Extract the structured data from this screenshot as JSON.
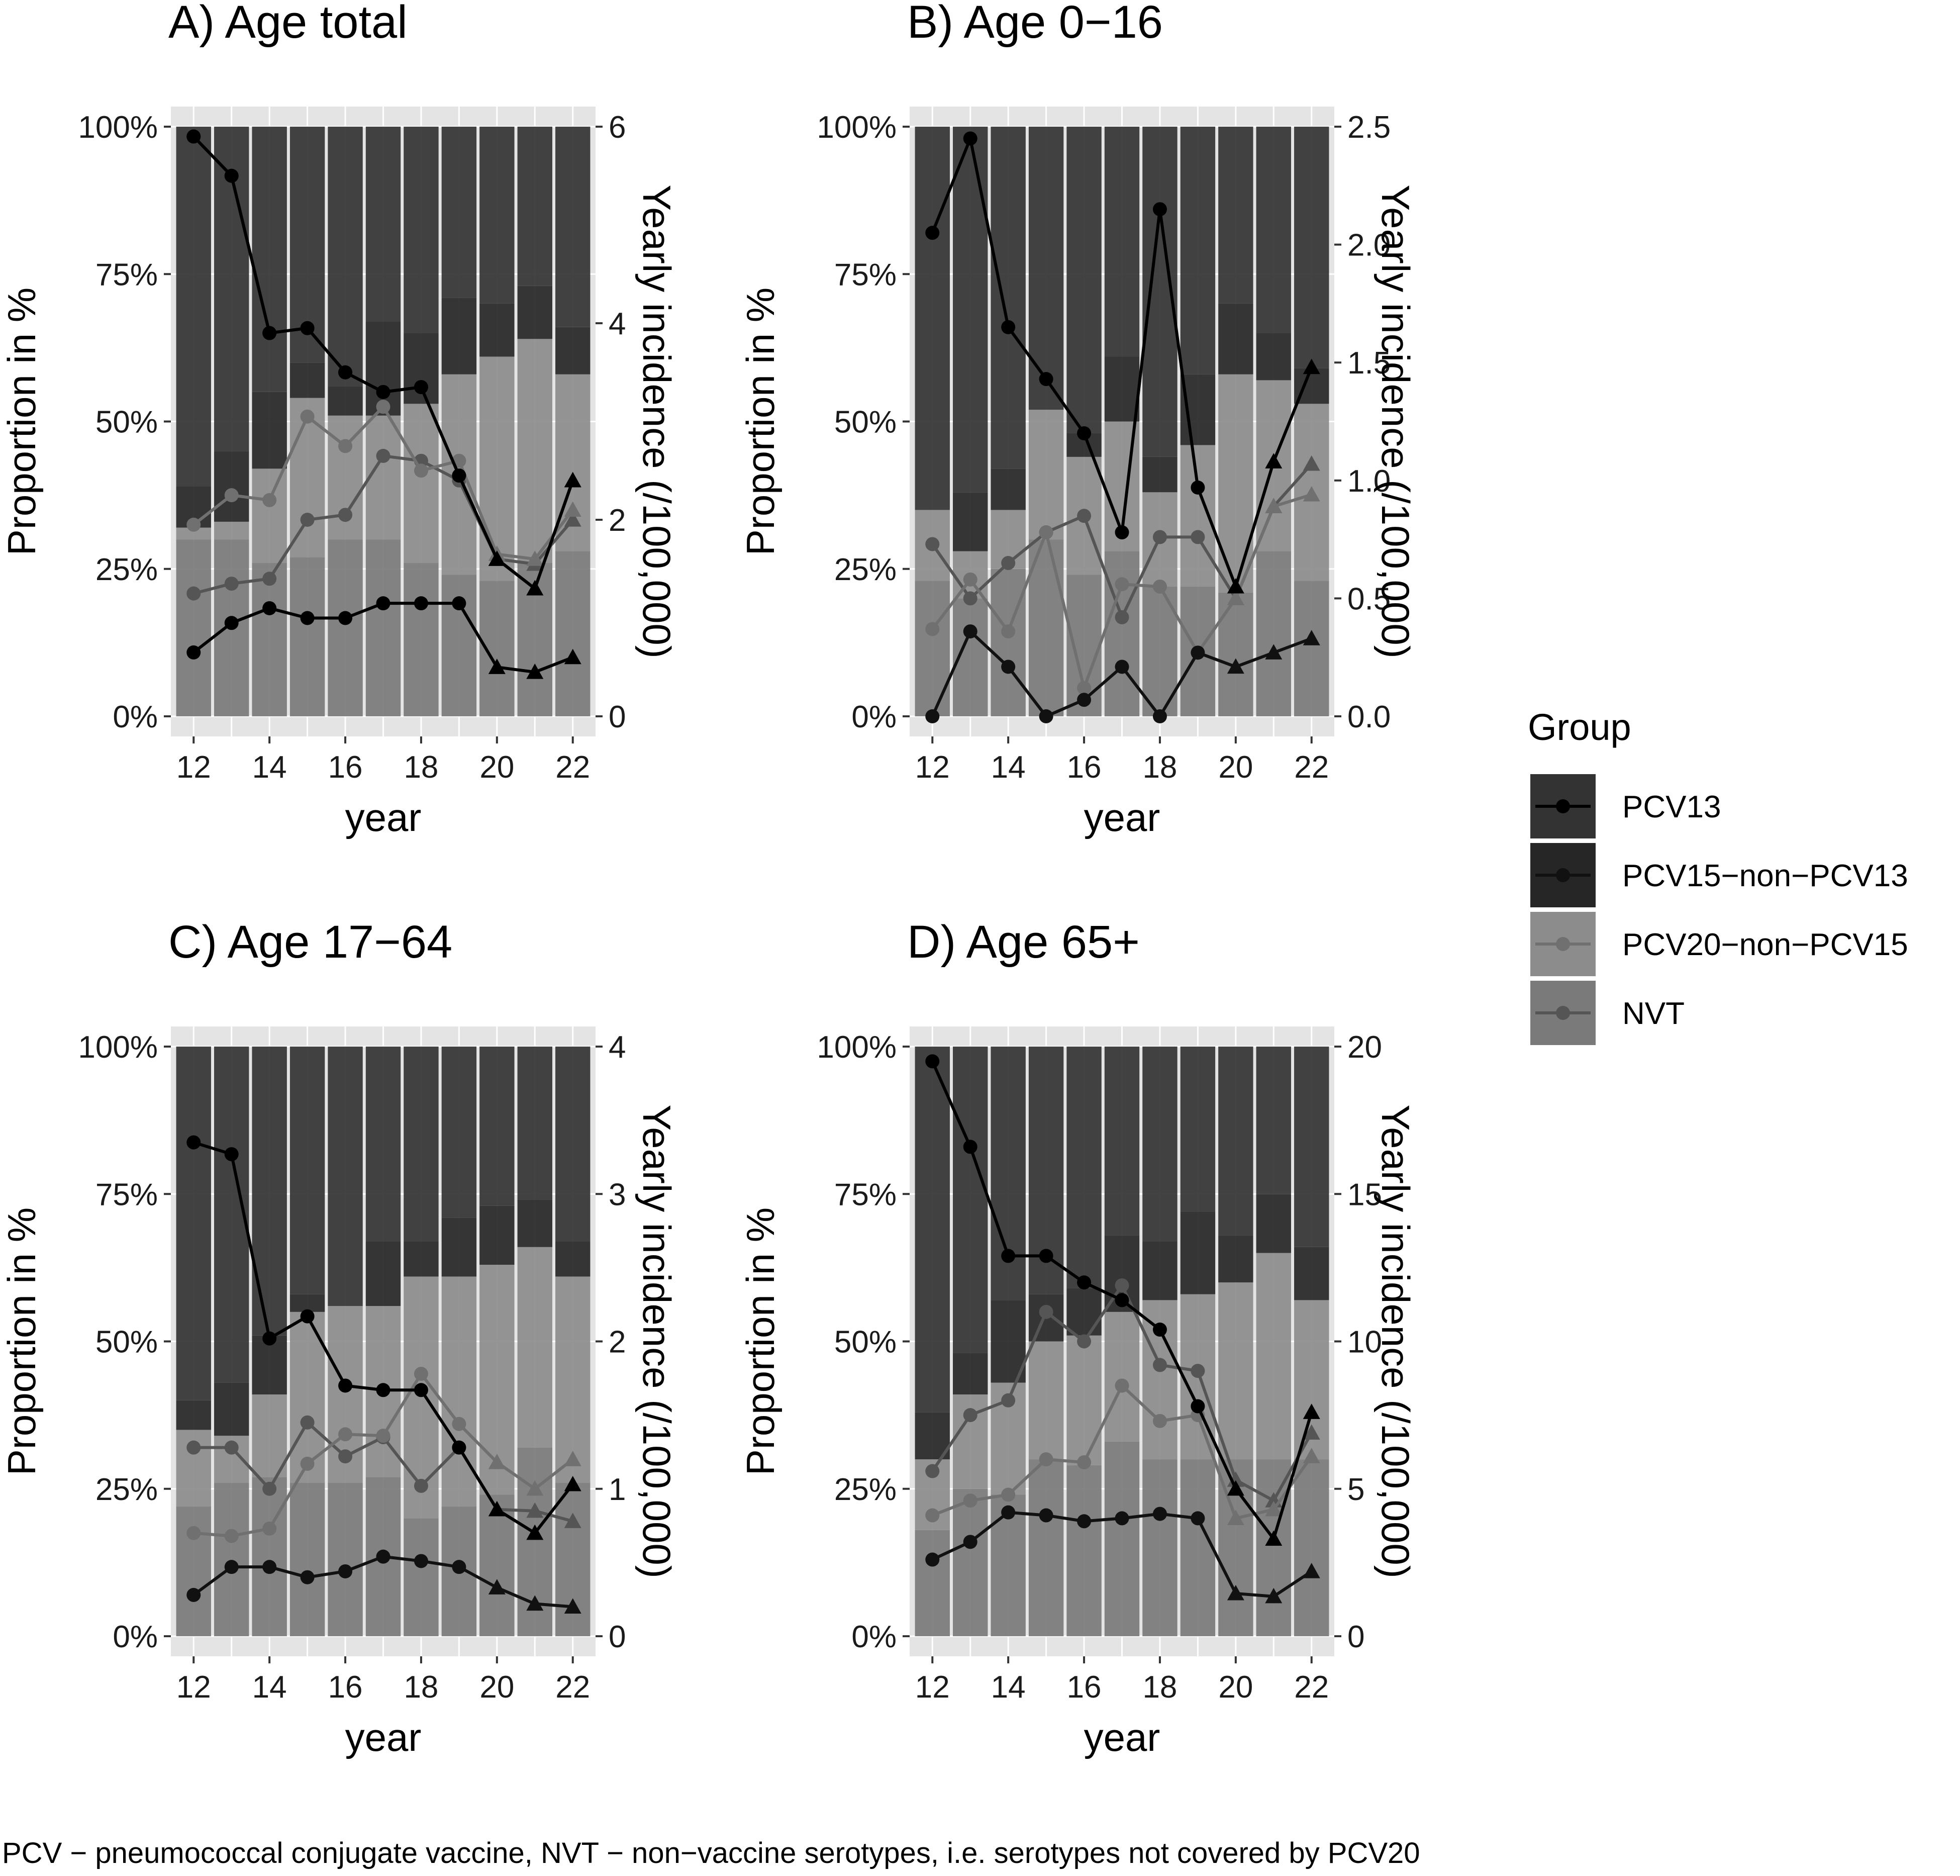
{
  "chart_data": {
    "type": "bar",
    "description_note": "",
    "groups": [
      "PCV13",
      "PCV15-non-PCV13",
      "PCV20-non-PCV15",
      "NVT"
    ],
    "colors": {
      "PCV13": {
        "bar": "#333333",
        "line": "#000000"
      },
      "PCV15-non-PCV13": {
        "bar": "#262626",
        "line": "#111111"
      },
      "PCV20-non-PCV15": {
        "bar": "#8c8c8c",
        "line": "#707070"
      },
      "NVT": {
        "bar": "#7a7a7a",
        "line": "#555555"
      }
    },
    "panel_background": "#e4e4e4",
    "legend": {
      "title": "Group",
      "items": [
        "PCV13",
        "PCV15−non−PCV13",
        "PCV20−non−PCV15",
        "NVT"
      ]
    },
    "caption": "PCV − pneumococcal conjugate vaccine, NVT − non−vaccine serotypes, i.e. serotypes not covered by PCV20",
    "panels": [
      {
        "title": "A) Age total",
        "xlabel": "year",
        "ylabel_left": "Proportion in %",
        "ylabel_right": "Yearly incidence (/100,000)",
        "years": [
          12,
          13,
          14,
          15,
          16,
          17,
          18,
          19,
          20,
          21,
          22
        ],
        "x_ticks": [
          "12",
          "14",
          "16",
          "18",
          "20",
          "22"
        ],
        "y_left_ticks": [
          "0%",
          "25%",
          "50%",
          "75%",
          "100%"
        ],
        "y_right_ticks": [
          "0",
          "2",
          "4",
          "6"
        ],
        "y_right_lim": [
          0,
          6
        ],
        "proportions": {
          "NVT": [
            30,
            30,
            26,
            27,
            30,
            30,
            26,
            24,
            23,
            26,
            28
          ],
          "PCV20-non-PCV15": [
            2,
            3,
            16,
            27,
            21,
            21,
            27,
            34,
            38,
            38,
            30
          ],
          "PCV15-non-PCV13": [
            7,
            12,
            13,
            6,
            5,
            16,
            12,
            13,
            9,
            9,
            8
          ],
          "PCV13": [
            61,
            55,
            45,
            40,
            44,
            33,
            35,
            29,
            30,
            27,
            34
          ]
        },
        "incidence": {
          "PCV13": [
            5.9,
            5.5,
            3.9,
            3.95,
            3.5,
            3.3,
            3.35,
            2.45,
            1.6,
            1.3,
            2.4
          ],
          "PCV15-non-PCV13": [
            5.9,
            5.5,
            3.9,
            3.95,
            3.5,
            3.3,
            3.35,
            2.45,
            1.6,
            1.3,
            2.4
          ],
          "PCV20-non-PCV15": [
            1.95,
            2.25,
            2.2,
            3.05,
            2.75,
            3.15,
            2.5,
            2.6,
            1.65,
            1.6,
            2.1
          ],
          "NVT": [
            1.25,
            1.35,
            1.4,
            2.0,
            2.05,
            2.65,
            2.6,
            2.4,
            1.6,
            1.55,
            2.0
          ],
          "PCV13_line_low": [
            0.65,
            0.95,
            1.1,
            1.0,
            1.0,
            1.15,
            1.15,
            1.15,
            0.5,
            0.45,
            0.6
          ]
        }
      },
      {
        "title": "B) Age 0−16",
        "xlabel": "year",
        "ylabel_left": "Proportion in %",
        "ylabel_right": "Yearly incidence (/100,000)",
        "years": [
          12,
          13,
          14,
          15,
          16,
          17,
          18,
          19,
          20,
          21,
          22
        ],
        "x_ticks": [
          "12",
          "14",
          "16",
          "18",
          "20",
          "22"
        ],
        "y_left_ticks": [
          "0%",
          "25%",
          "50%",
          "75%",
          "100%"
        ],
        "y_right_ticks": [
          "0.0",
          "0.5",
          "1.0",
          "1.5",
          "2.0",
          "2.5"
        ],
        "y_right_lim": [
          0,
          2.5
        ],
        "proportions": {
          "NVT": [
            23,
            20,
            25,
            30,
            24,
            28,
            22,
            22,
            21,
            28,
            23
          ],
          "PCV20-non-PCV15": [
            12,
            8,
            10,
            22,
            20,
            22,
            16,
            24,
            37,
            29,
            30
          ],
          "PCV15-non-PCV13": [
            0,
            10,
            7,
            0,
            4,
            11,
            6,
            12,
            12,
            8,
            6
          ],
          "PCV13": [
            65,
            62,
            58,
            48,
            52,
            39,
            56,
            42,
            30,
            35,
            41
          ]
        },
        "incidence": {
          "PCV13": [
            2.05,
            2.45,
            1.65,
            1.43,
            1.2,
            0.78,
            2.15,
            0.97,
            0.55,
            1.08,
            1.48
          ],
          "PCV15-non-PCV13": [
            0.0,
            0.36,
            0.21,
            0.0,
            0.07,
            0.21,
            0.0,
            0.27,
            0.21,
            0.27,
            0.33
          ],
          "PCV20-non-PCV15": [
            0.37,
            0.58,
            0.36,
            0.78,
            0.12,
            0.56,
            0.55,
            0.27,
            0.5,
            0.89,
            0.94
          ],
          "NVT": [
            0.73,
            0.5,
            0.65,
            0.78,
            0.85,
            0.42,
            0.76,
            0.76,
            0.5,
            0.89,
            1.07
          ]
        }
      },
      {
        "title": "C) Age 17−64",
        "xlabel": "year",
        "ylabel_left": "Proportion in %",
        "ylabel_right": "Yearly incidence (/100,000)",
        "years": [
          12,
          13,
          14,
          15,
          16,
          17,
          18,
          19,
          20,
          21,
          22
        ],
        "x_ticks": [
          "12",
          "14",
          "16",
          "18",
          "20",
          "22"
        ],
        "y_left_ticks": [
          "0%",
          "25%",
          "50%",
          "75%",
          "100%"
        ],
        "y_right_ticks": [
          "0",
          "1",
          "2",
          "3",
          "4"
        ],
        "y_right_lim": [
          0,
          4
        ],
        "proportions": {
          "NVT": [
            22,
            26,
            27,
            26,
            26,
            27,
            20,
            22,
            24,
            32,
            26
          ],
          "PCV20-non-PCV15": [
            13,
            8,
            14,
            29,
            30,
            29,
            41,
            39,
            39,
            34,
            35
          ],
          "PCV15-non-PCV13": [
            5,
            9,
            10,
            3,
            0,
            11,
            6,
            10,
            10,
            8,
            6
          ],
          "PCV13": [
            60,
            57,
            49,
            42,
            44,
            33,
            33,
            29,
            27,
            26,
            33
          ]
        },
        "incidence": {
          "PCV13": [
            3.35,
            3.27,
            2.02,
            2.17,
            1.7,
            1.67,
            1.67,
            1.28,
            0.86,
            0.7,
            1.03
          ],
          "PCV15-non-PCV13": [
            0.28,
            0.47,
            0.47,
            0.4,
            0.44,
            0.54,
            0.51,
            0.47,
            0.33,
            0.22,
            0.2
          ],
          "PCV20-non-PCV15": [
            0.7,
            0.68,
            0.73,
            1.17,
            1.37,
            1.36,
            1.78,
            1.44,
            1.18,
            1.0,
            1.2
          ],
          "NVT": [
            1.28,
            1.28,
            1.0,
            1.45,
            1.22,
            1.35,
            1.02,
            1.28,
            0.86,
            0.85,
            0.78
          ]
        }
      },
      {
        "title": "D) Age 65+",
        "xlabel": "year",
        "ylabel_left": "Proportion in %",
        "ylabel_right": "Yearly incidence (/100,000)",
        "years": [
          12,
          13,
          14,
          15,
          16,
          17,
          18,
          19,
          20,
          21,
          22
        ],
        "x_ticks": [
          "12",
          "14",
          "16",
          "18",
          "20",
          "22"
        ],
        "y_left_ticks": [
          "0%",
          "25%",
          "50%",
          "75%",
          "100%"
        ],
        "y_right_ticks": [
          "0",
          "5",
          "10",
          "15",
          "20"
        ],
        "y_right_lim": [
          0,
          20
        ],
        "proportions": {
          "NVT": [
            18,
            25,
            24,
            30,
            29,
            33,
            30,
            30,
            30,
            30,
            30
          ],
          "PCV20-non-PCV15": [
            12,
            16,
            19,
            20,
            22,
            22,
            27,
            28,
            30,
            35,
            27
          ],
          "PCV15-non-PCV13": [
            8,
            7,
            14,
            8,
            8,
            13,
            10,
            14,
            8,
            10,
            9
          ],
          "PCV13": [
            62,
            52,
            43,
            42,
            41,
            32,
            33,
            28,
            32,
            25,
            34
          ]
        },
        "incidence": {
          "PCV13": [
            19.5,
            16.6,
            12.9,
            12.9,
            12.0,
            11.4,
            10.4,
            7.8,
            5.0,
            3.3,
            7.6
          ],
          "PCV15-non-PCV13": [
            2.6,
            3.2,
            4.2,
            4.1,
            3.9,
            4.0,
            4.15,
            4.0,
            1.45,
            1.35,
            2.2
          ],
          "PCV20-non-PCV15": [
            4.1,
            4.6,
            4.8,
            6.0,
            5.9,
            8.5,
            7.3,
            7.5,
            4.0,
            4.3,
            6.1
          ],
          "NVT": [
            5.6,
            7.5,
            8.0,
            11.0,
            10.0,
            11.9,
            9.2,
            9.0,
            5.3,
            4.6,
            6.9
          ]
        }
      }
    ]
  }
}
